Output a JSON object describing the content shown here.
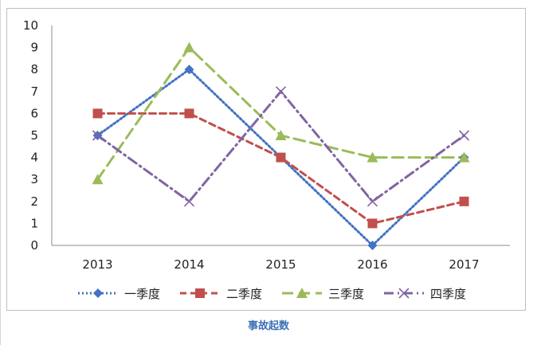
{
  "caption": "事故起数",
  "chart_data": {
    "type": "line",
    "categories": [
      "2013",
      "2014",
      "2015",
      "2016",
      "2017"
    ],
    "ylim": [
      0,
      10
    ],
    "yticks": [
      0,
      1,
      2,
      3,
      4,
      5,
      6,
      7,
      8,
      9,
      10
    ],
    "grid": false,
    "legend_position": "bottom",
    "series": [
      {
        "name": "一季度",
        "values": [
          5,
          8,
          4,
          0,
          4
        ],
        "color": "#4472c4",
        "marker": "diamond",
        "line": "dotted"
      },
      {
        "name": "二季度",
        "values": [
          6,
          6,
          4,
          1,
          2
        ],
        "color": "#c0504d",
        "marker": "square",
        "line": "dashed"
      },
      {
        "name": "三季度",
        "values": [
          3,
          9,
          5,
          4,
          4
        ],
        "color": "#9bbb59",
        "marker": "triangle",
        "line": "longdash"
      },
      {
        "name": "四季度",
        "values": [
          5,
          2,
          7,
          2,
          5
        ],
        "color": "#8064a2",
        "marker": "x",
        "line": "dashdot"
      }
    ]
  }
}
